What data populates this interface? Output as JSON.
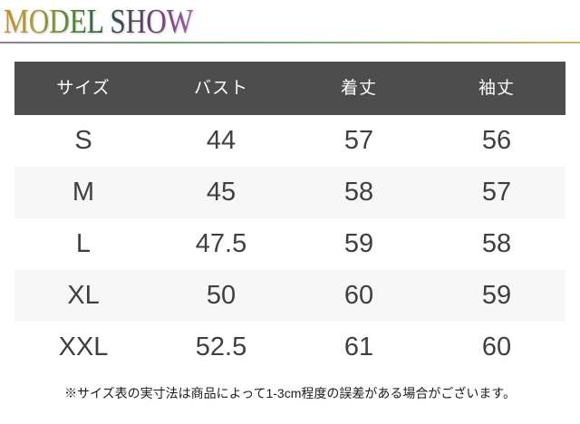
{
  "title": "MODEL SHOW",
  "title_gradient": [
    "#d2882a",
    "#a89d32",
    "#5a8a38",
    "#2e5e40",
    "#3d4d50",
    "#7b3b80",
    "#9a5fae"
  ],
  "divider_gradient": [
    "#8f7b9e",
    "#6f9e6f",
    "#7fb07f",
    "#d2b86a"
  ],
  "table": {
    "headers": [
      "サイズ",
      "バスト",
      "着丈",
      "袖丈"
    ],
    "rows": [
      [
        "S",
        "44",
        "57",
        "56"
      ],
      [
        "M",
        "45",
        "58",
        "57"
      ],
      [
        "L",
        "47.5",
        "59",
        "58"
      ],
      [
        "XL",
        "50",
        "60",
        "59"
      ],
      [
        "XXL",
        "52.5",
        "61",
        "60"
      ]
    ],
    "header_bg": "#4d4d4d",
    "header_text_color": "#ffffff",
    "stripe_color": "#f7f7f7",
    "body_text_color": "#3f3f3f"
  },
  "note": "※サイズ表の実寸法は商品によって1-3cm程度の誤差がある場合がございます。"
}
